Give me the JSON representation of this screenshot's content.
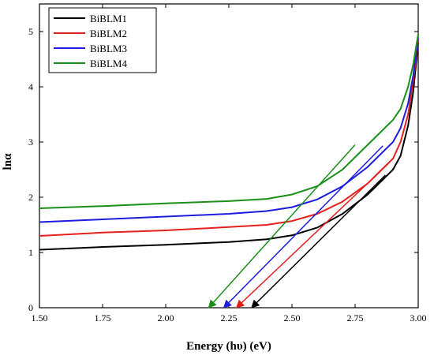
{
  "chart_data": {
    "type": "line",
    "xlabel": "Energy (hυ) (eV)",
    "ylabel": "lnα",
    "xlim": [
      1.5,
      3.0
    ],
    "ylim": [
      0,
      5.5
    ],
    "xticks": [
      "1.50",
      "1.75",
      "2.00",
      "2.25",
      "2.50",
      "2.75",
      "3.00"
    ],
    "yticks": [
      "0",
      "1",
      "2",
      "3",
      "4",
      "5"
    ],
    "grid": false,
    "legend_position": "top-left",
    "series": [
      {
        "name": "BiBLM1",
        "color": "#000000",
        "points": [
          [
            1.5,
            1.05
          ],
          [
            1.75,
            1.1
          ],
          [
            2.0,
            1.14
          ],
          [
            2.25,
            1.19
          ],
          [
            2.4,
            1.24
          ],
          [
            2.5,
            1.31
          ],
          [
            2.6,
            1.45
          ],
          [
            2.7,
            1.7
          ],
          [
            2.8,
            2.05
          ],
          [
            2.9,
            2.5
          ],
          [
            2.93,
            2.75
          ],
          [
            2.96,
            3.3
          ],
          [
            2.98,
            3.9
          ],
          [
            3.0,
            4.8
          ]
        ],
        "extrapolation": {
          "from": [
            2.87,
            2.4
          ],
          "to": [
            2.34,
            0.0
          ]
        }
      },
      {
        "name": "BiBLM2",
        "color": "#e3201b",
        "points": [
          [
            1.5,
            1.3
          ],
          [
            1.75,
            1.36
          ],
          [
            2.0,
            1.4
          ],
          [
            2.25,
            1.46
          ],
          [
            2.4,
            1.5
          ],
          [
            2.5,
            1.57
          ],
          [
            2.6,
            1.7
          ],
          [
            2.7,
            1.92
          ],
          [
            2.8,
            2.25
          ],
          [
            2.9,
            2.7
          ],
          [
            2.93,
            3.0
          ],
          [
            2.96,
            3.5
          ],
          [
            2.98,
            4.1
          ],
          [
            3.0,
            4.85
          ]
        ],
        "extrapolation": {
          "from": [
            2.88,
            2.6
          ],
          "to": [
            2.28,
            0.0
          ]
        }
      },
      {
        "name": "BiBLM3",
        "color": "#1c1ce0",
        "points": [
          [
            1.5,
            1.55
          ],
          [
            1.75,
            1.6
          ],
          [
            2.0,
            1.65
          ],
          [
            2.25,
            1.7
          ],
          [
            2.4,
            1.75
          ],
          [
            2.5,
            1.82
          ],
          [
            2.6,
            1.96
          ],
          [
            2.7,
            2.2
          ],
          [
            2.8,
            2.55
          ],
          [
            2.9,
            3.0
          ],
          [
            2.93,
            3.25
          ],
          [
            2.96,
            3.7
          ],
          [
            2.98,
            4.2
          ],
          [
            3.0,
            4.9
          ]
        ],
        "extrapolation": {
          "from": [
            2.86,
            2.93
          ],
          "to": [
            2.23,
            0.0
          ]
        }
      },
      {
        "name": "BiBLM4",
        "color": "#1a8f1a",
        "points": [
          [
            1.5,
            1.8
          ],
          [
            1.75,
            1.84
          ],
          [
            2.0,
            1.89
          ],
          [
            2.25,
            1.93
          ],
          [
            2.4,
            1.97
          ],
          [
            2.5,
            2.05
          ],
          [
            2.6,
            2.2
          ],
          [
            2.7,
            2.5
          ],
          [
            2.8,
            2.95
          ],
          [
            2.9,
            3.4
          ],
          [
            2.93,
            3.6
          ],
          [
            2.96,
            4.0
          ],
          [
            2.98,
            4.4
          ],
          [
            3.0,
            4.95
          ]
        ],
        "extrapolation": {
          "from": [
            2.75,
            2.95
          ],
          "to": [
            2.17,
            0.0
          ]
        }
      }
    ]
  }
}
